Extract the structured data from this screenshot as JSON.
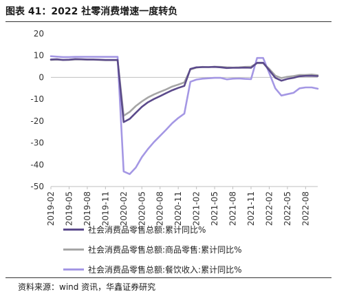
{
  "header": {
    "title": "图表 41：2022 社零消费增速一度转负"
  },
  "footer": {
    "source": "资料来源：wind 资讯，华鑫证券研究"
  },
  "chart_data": {
    "type": "line",
    "title": "图表 41：2022 社零消费增速一度转负",
    "xlabel": "",
    "ylabel": "",
    "ylim": [
      -50,
      20
    ],
    "yticks": [
      20,
      10,
      0,
      -10,
      -20,
      -30,
      -40,
      -50
    ],
    "grid": false,
    "legend_position": "bottom",
    "x": [
      "2019-02",
      "2019-03",
      "2019-04",
      "2019-05",
      "2019-06",
      "2019-07",
      "2019-08",
      "2019-09",
      "2019-10",
      "2019-11",
      "2019-12",
      "2020-01",
      "2020-02",
      "2020-03",
      "2020-04",
      "2020-05",
      "2020-06",
      "2020-07",
      "2020-08",
      "2020-09",
      "2020-10",
      "2020-11",
      "2020-12",
      "2021-01",
      "2021-02",
      "2021-03",
      "2021-04",
      "2021-05",
      "2021-06",
      "2021-07",
      "2021-08",
      "2021-09",
      "2021-10",
      "2021-11",
      "2021-12",
      "2022-01",
      "2022-02",
      "2022-03",
      "2022-04",
      "2022-05",
      "2022-06",
      "2022-07",
      "2022-08",
      "2022-09",
      "2022-10"
    ],
    "xticklabels": [
      "2019-02",
      "2019-05",
      "2019-08",
      "2019-11",
      "2020-02",
      "2020-05",
      "2020-08",
      "2020-11",
      "2021-02",
      "2021-05",
      "2021-08",
      "2021-11",
      "2022-02",
      "2022-05",
      "2022-08"
    ],
    "series": [
      {
        "name": "社会消费品零售总额:累计同比%",
        "color": "#5b4a8b",
        "values": [
          8.2,
          8.3,
          8.0,
          8.1,
          8.4,
          8.3,
          8.2,
          8.2,
          8.1,
          8.0,
          8.0,
          8.0,
          -20.5,
          -19.0,
          -16.2,
          -13.5,
          -11.4,
          -9.9,
          -8.6,
          -7.2,
          -5.9,
          -4.8,
          -3.9,
          3.9,
          4.6,
          4.7,
          4.7,
          4.8,
          4.6,
          4.3,
          4.4,
          4.4,
          4.5,
          4.4,
          6.7,
          6.7,
          3.3,
          -0.2,
          -1.5,
          -0.7,
          -0.2,
          0.5,
          0.7,
          0.7,
          0.6
        ]
      },
      {
        "name": "社会消费品零售总额:商品零售:累计同比%",
        "color": "#a6a6a6",
        "values": [
          8.0,
          8.1,
          8.0,
          8.0,
          8.2,
          8.2,
          8.1,
          8.1,
          8.0,
          7.9,
          7.9,
          7.9,
          -17.6,
          -15.8,
          -13.1,
          -11.0,
          -9.2,
          -7.8,
          -6.6,
          -5.5,
          -4.2,
          -3.3,
          -2.3,
          3.6,
          4.5,
          4.8,
          4.7,
          4.9,
          4.8,
          4.6,
          4.5,
          4.6,
          4.8,
          4.9,
          6.5,
          6.5,
          3.9,
          0.8,
          -0.3,
          0.3,
          0.6,
          1.1,
          1.1,
          1.3,
          1.0
        ]
      },
      {
        "name": "社会消费品零售总额:餐饮收入:累计同比%",
        "color": "#a497e4",
        "values": [
          9.7,
          9.5,
          9.3,
          9.3,
          9.4,
          9.4,
          9.4,
          9.4,
          9.4,
          9.4,
          9.4,
          9.4,
          -43.1,
          -44.3,
          -41.3,
          -36.5,
          -32.8,
          -29.6,
          -26.8,
          -24.0,
          -21.0,
          -18.6,
          -16.6,
          -2.0,
          -1.0,
          -0.6,
          -0.4,
          -0.2,
          -0.2,
          -0.9,
          -0.6,
          -0.5,
          -0.7,
          -0.8,
          8.9,
          8.9,
          2.0,
          -5.0,
          -8.3,
          -7.7,
          -7.1,
          -5.0,
          -4.6,
          -4.6,
          -5.2
        ]
      }
    ]
  }
}
